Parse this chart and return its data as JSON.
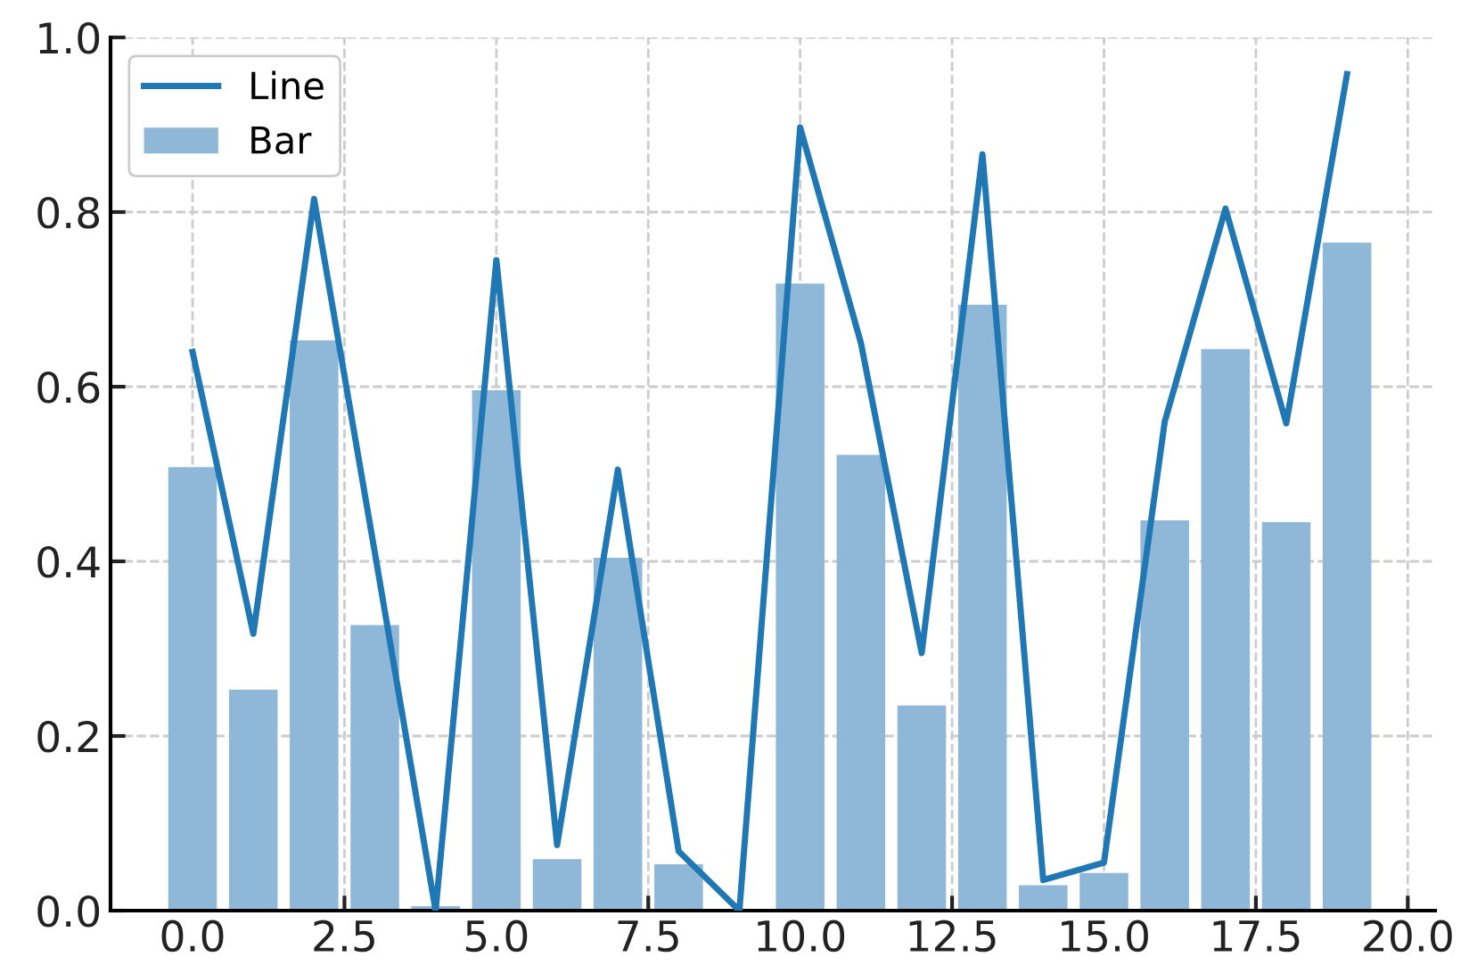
{
  "chart_data": {
    "type": "bar",
    "x": [
      0,
      1,
      2,
      3,
      4,
      5,
      6,
      7,
      8,
      9,
      10,
      11,
      12,
      13,
      14,
      15,
      16,
      17,
      18,
      19
    ],
    "series": [
      {
        "name": "Line",
        "type": "line",
        "color": "#1f77b4",
        "values": [
          0.64,
          0.317,
          0.815,
          0.41,
          0.0,
          0.745,
          0.075,
          0.505,
          0.068,
          0.0,
          0.897,
          0.65,
          0.295,
          0.866,
          0.035,
          0.055,
          0.56,
          0.804,
          0.558,
          0.958
        ]
      },
      {
        "name": "Bar",
        "color": "#8fb8d8",
        "values": [
          0.508,
          0.253,
          0.653,
          0.327,
          0.005,
          0.596,
          0.059,
          0.404,
          0.053,
          0.0,
          0.718,
          0.522,
          0.235,
          0.694,
          0.029,
          0.043,
          0.447,
          0.643,
          0.445,
          0.765
        ]
      }
    ],
    "xlim": [
      -1.35,
      20.45
    ],
    "xticks": [
      {
        "value": 0,
        "label": "0.0"
      },
      {
        "value": 2.5,
        "label": "2.5"
      },
      {
        "value": 5,
        "label": "5.0"
      },
      {
        "value": 7.5,
        "label": "7.5"
      },
      {
        "value": 10,
        "label": "10.0"
      },
      {
        "value": 12.5,
        "label": "12.5"
      },
      {
        "value": 15,
        "label": "15.0"
      },
      {
        "value": 17.5,
        "label": "17.5"
      },
      {
        "value": 20,
        "label": "20.0"
      }
    ],
    "ylim": [
      0,
      1.0
    ],
    "yticks": [
      {
        "value": 0,
        "label": "0.0"
      },
      {
        "value": 0.2,
        "label": "0.2"
      },
      {
        "value": 0.4,
        "label": "0.4"
      },
      {
        "value": 0.6,
        "label": "0.6"
      },
      {
        "value": 0.8,
        "label": "0.8"
      },
      {
        "value": 1.0,
        "label": "1.0"
      }
    ],
    "grid": true,
    "legend": "top left"
  }
}
